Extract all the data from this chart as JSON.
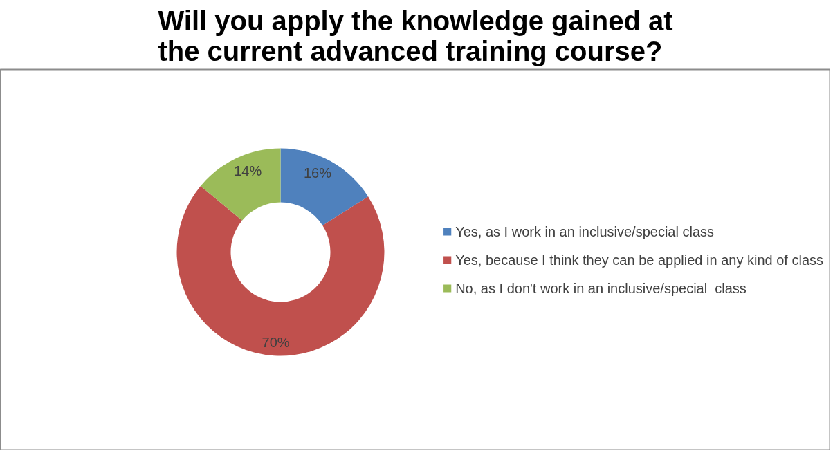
{
  "chart_data": {
    "type": "donut",
    "title": "Will you apply the knowledge gained at the current advanced training course?",
    "categories": [
      "Yes, as I work in an inclusive/special class",
      "Yes, because I think they can be applied in any kind of class",
      "No, as I don't work in an inclusive/special  class"
    ],
    "values": [
      16,
      70,
      14
    ],
    "colors": [
      "#4f81bd",
      "#c0504d",
      "#9bbb59"
    ],
    "value_labels": [
      "16%",
      "70%",
      "14%"
    ],
    "legend": "right"
  }
}
